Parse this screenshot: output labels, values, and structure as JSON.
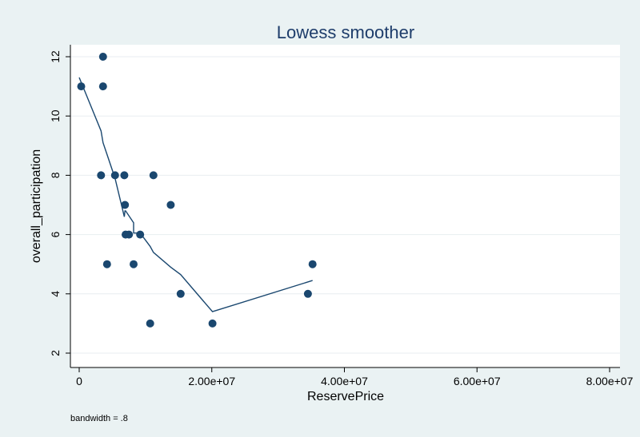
{
  "chart_data": {
    "type": "scatter",
    "title": "Lowess smoother",
    "xlabel": "ReservePrice",
    "ylabel": "overall_participation",
    "note": "bandwidth = .8",
    "xlim": [
      0,
      80000000
    ],
    "ylim": [
      2,
      12
    ],
    "x_ticks": [
      0,
      20000000,
      40000000,
      60000000,
      80000000
    ],
    "x_tick_labels": [
      "0",
      "2.00e+07",
      "4.00e+07",
      "6.00e+07",
      "8.00e+07"
    ],
    "y_ticks": [
      2,
      4,
      6,
      8,
      10,
      12
    ],
    "y_tick_labels": [
      "2",
      "4",
      "6",
      "8",
      "10",
      "12"
    ],
    "grid": true,
    "colors": {
      "marker": "#1a476f",
      "line": "#1a476f",
      "background": "#eaf2f3",
      "plot_bg": "#ffffff",
      "grid": "#e8eef0"
    },
    "points": [
      {
        "x": 300000,
        "y": 11
      },
      {
        "x": 3300000,
        "y": 8
      },
      {
        "x": 3600000,
        "y": 12
      },
      {
        "x": 3600000,
        "y": 11
      },
      {
        "x": 4200000,
        "y": 5
      },
      {
        "x": 5400000,
        "y": 8
      },
      {
        "x": 6800000,
        "y": 8
      },
      {
        "x": 6900000,
        "y": 7
      },
      {
        "x": 7000000,
        "y": 6
      },
      {
        "x": 7500000,
        "y": 6
      },
      {
        "x": 8200000,
        "y": 5
      },
      {
        "x": 9200000,
        "y": 6
      },
      {
        "x": 10700000,
        "y": 3
      },
      {
        "x": 11200000,
        "y": 8
      },
      {
        "x": 13800000,
        "y": 7
      },
      {
        "x": 15300000,
        "y": 4
      },
      {
        "x": 20100000,
        "y": 3
      },
      {
        "x": 34500000,
        "y": 4
      },
      {
        "x": 35200000,
        "y": 5
      }
    ],
    "smoother": [
      {
        "x": 0,
        "y": 11.3
      },
      {
        "x": 3300000,
        "y": 9.5
      },
      {
        "x": 3600000,
        "y": 9.1
      },
      {
        "x": 4200000,
        "y": 8.7
      },
      {
        "x": 5400000,
        "y": 7.9
      },
      {
        "x": 6800000,
        "y": 6.6
      },
      {
        "x": 6900000,
        "y": 6.8
      },
      {
        "x": 7000000,
        "y": 6.8
      },
      {
        "x": 8200000,
        "y": 6.4
      },
      {
        "x": 8200000,
        "y": 6.05
      },
      {
        "x": 9200000,
        "y": 6.05
      },
      {
        "x": 10700000,
        "y": 5.6
      },
      {
        "x": 11200000,
        "y": 5.4
      },
      {
        "x": 13800000,
        "y": 4.9
      },
      {
        "x": 15300000,
        "y": 4.65
      },
      {
        "x": 20100000,
        "y": 3.4
      },
      {
        "x": 35200000,
        "y": 4.45
      }
    ]
  }
}
